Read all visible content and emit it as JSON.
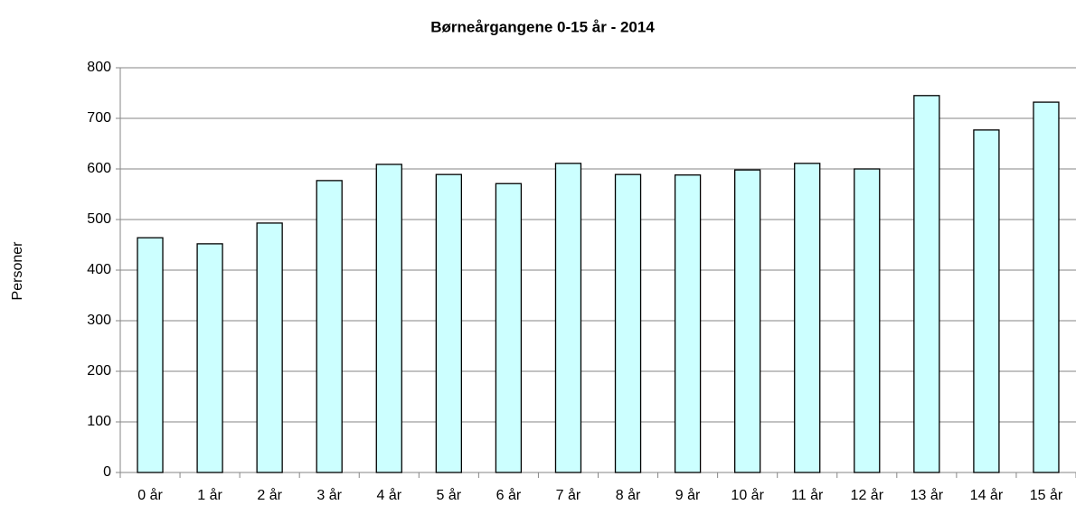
{
  "chart_data": {
    "type": "bar",
    "title": "Børneårgangene 0-15 år - 2014",
    "y_label": "Personer",
    "categories": [
      "0 år",
      "1 år",
      "2 år",
      "3 år",
      "4 år",
      "5 år",
      "6 år",
      "7 år",
      "8 år",
      "9 år",
      "10 år",
      "11 år",
      "12 år",
      "13 år",
      "14 år",
      "15 år"
    ],
    "values": [
      464,
      452,
      493,
      577,
      609,
      589,
      571,
      611,
      589,
      588,
      598,
      611,
      600,
      745,
      677,
      732
    ],
    "color": "#ccffff",
    "ylim": [
      0,
      800
    ],
    "yticks": [
      0,
      100,
      200,
      300,
      400,
      500,
      600,
      700,
      800
    ],
    "grid": true
  }
}
